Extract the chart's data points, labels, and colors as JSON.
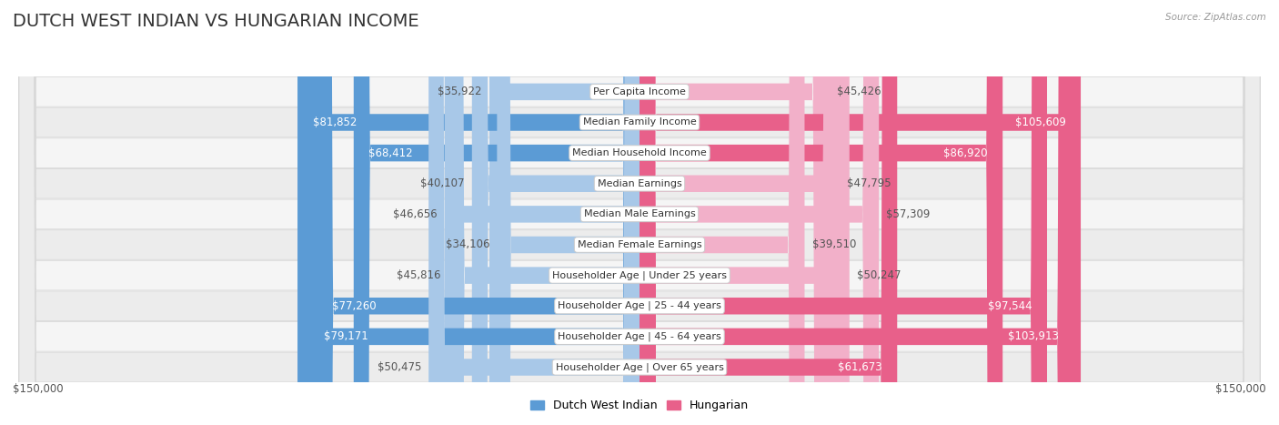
{
  "title": "DUTCH WEST INDIAN VS HUNGARIAN INCOME",
  "source": "Source: ZipAtlas.com",
  "categories": [
    "Per Capita Income",
    "Median Family Income",
    "Median Household Income",
    "Median Earnings",
    "Median Male Earnings",
    "Median Female Earnings",
    "Householder Age | Under 25 years",
    "Householder Age | 25 - 44 years",
    "Householder Age | 45 - 64 years",
    "Householder Age | Over 65 years"
  ],
  "dutch_values": [
    35922,
    81852,
    68412,
    40107,
    46656,
    34106,
    45816,
    77260,
    79171,
    50475
  ],
  "hungarian_values": [
    45426,
    105609,
    86920,
    47795,
    57309,
    39510,
    50247,
    97544,
    103913,
    61673
  ],
  "dutch_labels": [
    "$35,922",
    "$81,852",
    "$68,412",
    "$40,107",
    "$46,656",
    "$34,106",
    "$45,816",
    "$77,260",
    "$79,171",
    "$50,475"
  ],
  "hungarian_labels": [
    "$45,426",
    "$105,609",
    "$86,920",
    "$47,795",
    "$57,309",
    "$39,510",
    "$50,247",
    "$97,544",
    "$103,913",
    "$61,673"
  ],
  "dutch_color_light": "#a8c8e8",
  "dutch_color_dark": "#5b9bd5",
  "hungarian_color_light": "#f2b0c9",
  "hungarian_color_dark": "#e8608a",
  "max_value": 150000,
  "axis_label": "$150,000",
  "background_color": "#ffffff",
  "title_fontsize": 14,
  "label_fontsize": 8.5,
  "category_fontsize": 8.0,
  "dutch_large_threshold": 60000,
  "hungarian_large_threshold": 60000
}
